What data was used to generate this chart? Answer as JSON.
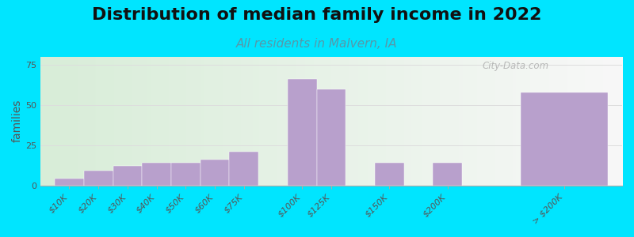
{
  "title": "Distribution of median family income in 2022",
  "subtitle": "All residents in Malvern, IA",
  "ylabel": "families",
  "categories": [
    "$10K",
    "$20K",
    "$30K",
    "$40K",
    "$50K",
    "$60K",
    "$75K",
    "$100K",
    "$125K",
    "$150K",
    "$200K",
    "> $200K"
  ],
  "values": [
    4,
    9,
    12,
    14,
    14,
    16,
    21,
    66,
    60,
    14,
    14,
    58
  ],
  "bar_positions": [
    0,
    1,
    2,
    3,
    4,
    5,
    6,
    8,
    9,
    11,
    13,
    16
  ],
  "bar_widths": [
    1,
    1,
    1,
    1,
    1,
    1,
    1,
    1,
    1,
    1,
    1,
    3
  ],
  "bar_color": "#b8a0cc",
  "background_outer": "#00e5ff",
  "ylim": [
    0,
    80
  ],
  "yticks": [
    0,
    25,
    50,
    75
  ],
  "title_fontsize": 16,
  "subtitle_fontsize": 11,
  "ylabel_fontsize": 10,
  "tick_fontsize": 8,
  "watermark": "City-Data.com"
}
